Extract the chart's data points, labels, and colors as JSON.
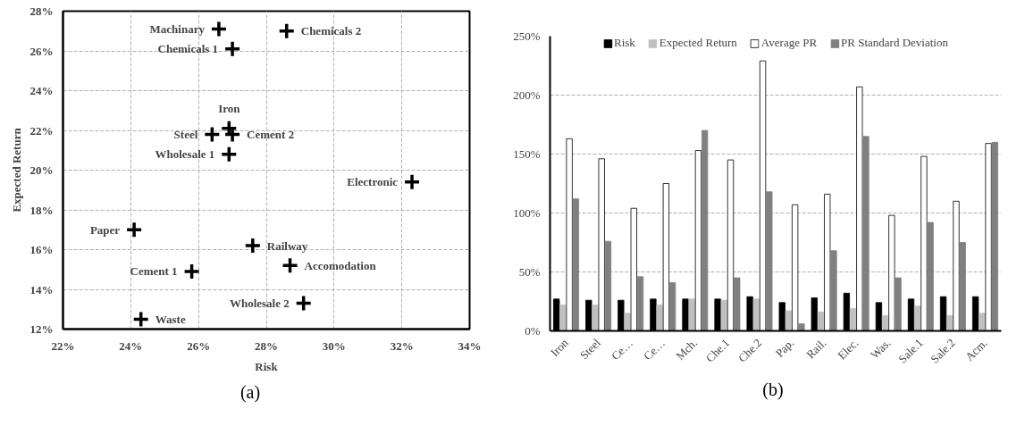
{
  "chart_data": [
    {
      "type": "scatter",
      "xlabel": "Risk",
      "ylabel": "Expected Return",
      "marker": "cross",
      "grid": true,
      "x": [
        26.6,
        28.6,
        27.0,
        26.9,
        26.4,
        27.0,
        26.9,
        32.3,
        24.1,
        27.6,
        28.7,
        25.8,
        29.1,
        24.3
      ],
      "values": [
        27.1,
        27.0,
        26.1,
        22.1,
        21.8,
        21.8,
        20.8,
        19.4,
        17.0,
        16.2,
        15.2,
        14.9,
        13.3,
        12.5
      ],
      "color": "#000000",
      "xlim": [
        22,
        34
      ],
      "ylim": [
        12,
        28
      ],
      "xticks": [
        {
          "value": 22,
          "label": "22%"
        },
        {
          "value": 24,
          "label": "24%"
        },
        {
          "value": 26,
          "label": "26%"
        },
        {
          "value": 28,
          "label": "28%"
        },
        {
          "value": 30,
          "label": "30%"
        },
        {
          "value": 32,
          "label": "32%"
        },
        {
          "value": 34,
          "label": "34%"
        }
      ],
      "yticks": [
        {
          "value": 12,
          "label": "12%"
        },
        {
          "value": 14,
          "label": "14%"
        },
        {
          "value": 16,
          "label": "16%"
        },
        {
          "value": 18,
          "label": "18%"
        },
        {
          "value": 20,
          "label": "20%"
        },
        {
          "value": 22,
          "label": "22%"
        },
        {
          "value": 24,
          "label": "24%"
        },
        {
          "value": 26,
          "label": "26%"
        },
        {
          "value": 28,
          "label": "28%"
        }
      ],
      "annotations": [
        {
          "text": "Machinary",
          "x": 26.6,
          "y": 27.1
        },
        {
          "text": "Chemicals 2",
          "x": 28.6,
          "y": 27.0
        },
        {
          "text": "Chemicals 1",
          "x": 27.0,
          "y": 26.1
        },
        {
          "text": "Iron",
          "x": 26.9,
          "y": 22.1
        },
        {
          "text": "Steel",
          "x": 26.4,
          "y": 21.8
        },
        {
          "text": "Cement 2",
          "x": 27.0,
          "y": 21.8
        },
        {
          "text": "Wholesale 1",
          "x": 26.9,
          "y": 20.8
        },
        {
          "text": "Electronic",
          "x": 32.3,
          "y": 19.4
        },
        {
          "text": "Paper",
          "x": 24.1,
          "y": 17.0
        },
        {
          "text": "Railway",
          "x": 27.6,
          "y": 16.2
        },
        {
          "text": "Accomodation",
          "x": 28.7,
          "y": 15.2
        },
        {
          "text": "Cement 1",
          "x": 25.8,
          "y": 14.9
        },
        {
          "text": "Wholesale 2",
          "x": 29.1,
          "y": 13.3
        },
        {
          "text": "Waste",
          "x": 24.3,
          "y": 12.5
        },
        "(a)"
      ]
    },
    {
      "type": "bar",
      "legend": "top",
      "grid": "y",
      "categories": [
        "Iron",
        "Steel",
        "Ce…",
        "Ce…",
        "Mch.",
        "Che.1",
        "Che.2",
        "Pap.",
        "Rail.",
        "Elec.",
        "Was.",
        "Sale.1",
        "Sale.2",
        "Acm."
      ],
      "ylim": [
        0,
        250
      ],
      "yticks": [
        {
          "value": 0,
          "label": "0%"
        },
        {
          "value": 50,
          "label": "50%"
        },
        {
          "value": 100,
          "label": "100%"
        },
        {
          "value": 150,
          "label": "150%"
        },
        {
          "value": 200,
          "label": "200%"
        },
        {
          "value": 250,
          "label": "250%"
        }
      ],
      "series": [
        {
          "name": "Risk",
          "color": "#000000",
          "values": [
            27,
            26,
            26,
            27,
            27,
            27,
            29,
            24,
            28,
            32,
            24,
            27,
            29,
            29
          ]
        },
        {
          "name": "Expected Return",
          "color": "#c0c0c0",
          "values": [
            22,
            22,
            15,
            22,
            27,
            26,
            27,
            17,
            16,
            19,
            13,
            21,
            13,
            15
          ]
        },
        {
          "name": "Average PR",
          "color": "#ffffff",
          "values": [
            163,
            146,
            104,
            125,
            153,
            145,
            229,
            107,
            116,
            207,
            98,
            148,
            110,
            159
          ]
        },
        {
          "name": "PR Standard Deviation",
          "color": "#808080",
          "values": [
            112,
            76,
            46,
            41,
            170,
            45,
            118,
            6,
            68,
            165,
            45,
            92,
            75,
            160
          ]
        }
      ],
      "annotations": [
        "(b)"
      ]
    }
  ]
}
